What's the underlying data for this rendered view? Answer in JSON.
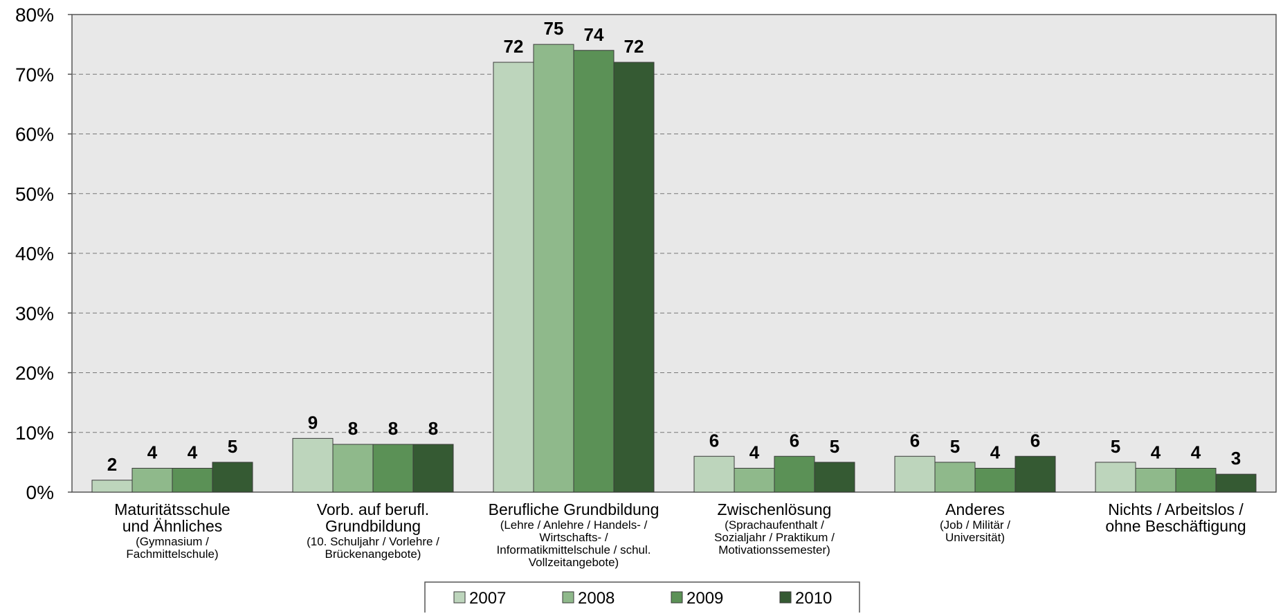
{
  "chart_data": {
    "type": "bar",
    "categories": [
      {
        "main": [
          "Maturitätsschule",
          "und Ähnliches"
        ],
        "sub": [
          "(Gymnasium /",
          "Fachmittelschule)"
        ]
      },
      {
        "main": [
          "Vorb. auf berufl.",
          "Grundbildung"
        ],
        "sub": [
          "(10. Schuljahr / Vorlehre /",
          "Brückenangebote)"
        ]
      },
      {
        "main": [
          "Berufliche Grundbildung"
        ],
        "sub": [
          "(Lehre / Anlehre / Handels- /",
          "Wirtschafts- /",
          "Informatikmittelschule / schul.",
          "Vollzeitangebote)"
        ]
      },
      {
        "main": [
          "Zwischenlösung"
        ],
        "sub": [
          "(Sprachaufenthalt /",
          "Sozialjahr / Praktikum /",
          "Motivationssemester)"
        ]
      },
      {
        "main": [
          "Anderes"
        ],
        "sub": [
          "(Job / Militär /",
          "Universität)"
        ]
      },
      {
        "main": [
          "Nichts / Arbeitslos /",
          "ohne Beschäftigung"
        ],
        "sub": []
      }
    ],
    "series": [
      {
        "name": "2007",
        "color": "#bdd5bc",
        "values": [
          2,
          9,
          72,
          6,
          6,
          5
        ]
      },
      {
        "name": "2008",
        "color": "#8fb98b",
        "values": [
          4,
          8,
          75,
          4,
          5,
          4
        ]
      },
      {
        "name": "2009",
        "color": "#5b9156",
        "values": [
          4,
          8,
          74,
          6,
          4,
          4
        ]
      },
      {
        "name": "2010",
        "color": "#355a33",
        "values": [
          5,
          8,
          72,
          5,
          6,
          3
        ]
      }
    ],
    "y_ticks": [
      "0%",
      "10%",
      "20%",
      "30%",
      "40%",
      "50%",
      "60%",
      "70%",
      "80%"
    ],
    "ylim": [
      0,
      80
    ],
    "grid": true,
    "legend_position": "bottom",
    "plot_background": "#e8e8e8"
  }
}
